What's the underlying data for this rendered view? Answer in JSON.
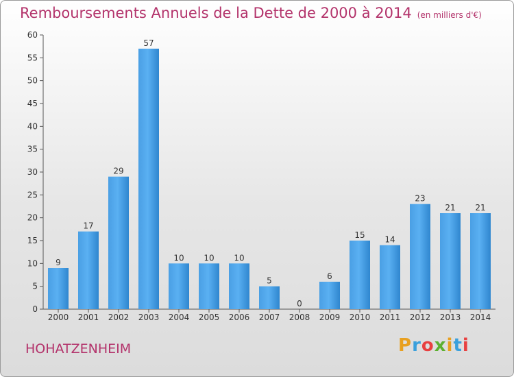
{
  "title": "Remboursements Annuels de la Dette de 2000 à 2014",
  "unit": "(en milliers d'€)",
  "commune": "HOHATZENHEIM",
  "logo": {
    "letters": [
      "P",
      "r",
      "o",
      "x",
      "i",
      "t",
      "i"
    ],
    "colors": [
      "#e8a020",
      "#3aa0dc",
      "#e84040",
      "#5cb030",
      "#e8a020",
      "#3aa0dc",
      "#e84040"
    ]
  },
  "colors": {
    "bar": "#3b8fd6",
    "bar_light": "#5aaef0",
    "title": "#b3336b"
  },
  "chart_data": {
    "type": "bar",
    "title": "Remboursements Annuels de la Dette de 2000 à 2014",
    "xlabel": "",
    "ylabel": "",
    "categories": [
      "2000",
      "2001",
      "2002",
      "2003",
      "2004",
      "2005",
      "2006",
      "2007",
      "2008",
      "2009",
      "2010",
      "2011",
      "2012",
      "2013",
      "2014"
    ],
    "values": [
      9,
      17,
      29,
      57,
      10,
      10,
      10,
      5,
      0,
      6,
      15,
      14,
      23,
      21,
      21
    ],
    "ylim": [
      0,
      60
    ],
    "yticks": [
      0,
      5,
      10,
      15,
      20,
      25,
      30,
      35,
      40,
      45,
      50,
      55,
      60
    ],
    "grid": false
  }
}
